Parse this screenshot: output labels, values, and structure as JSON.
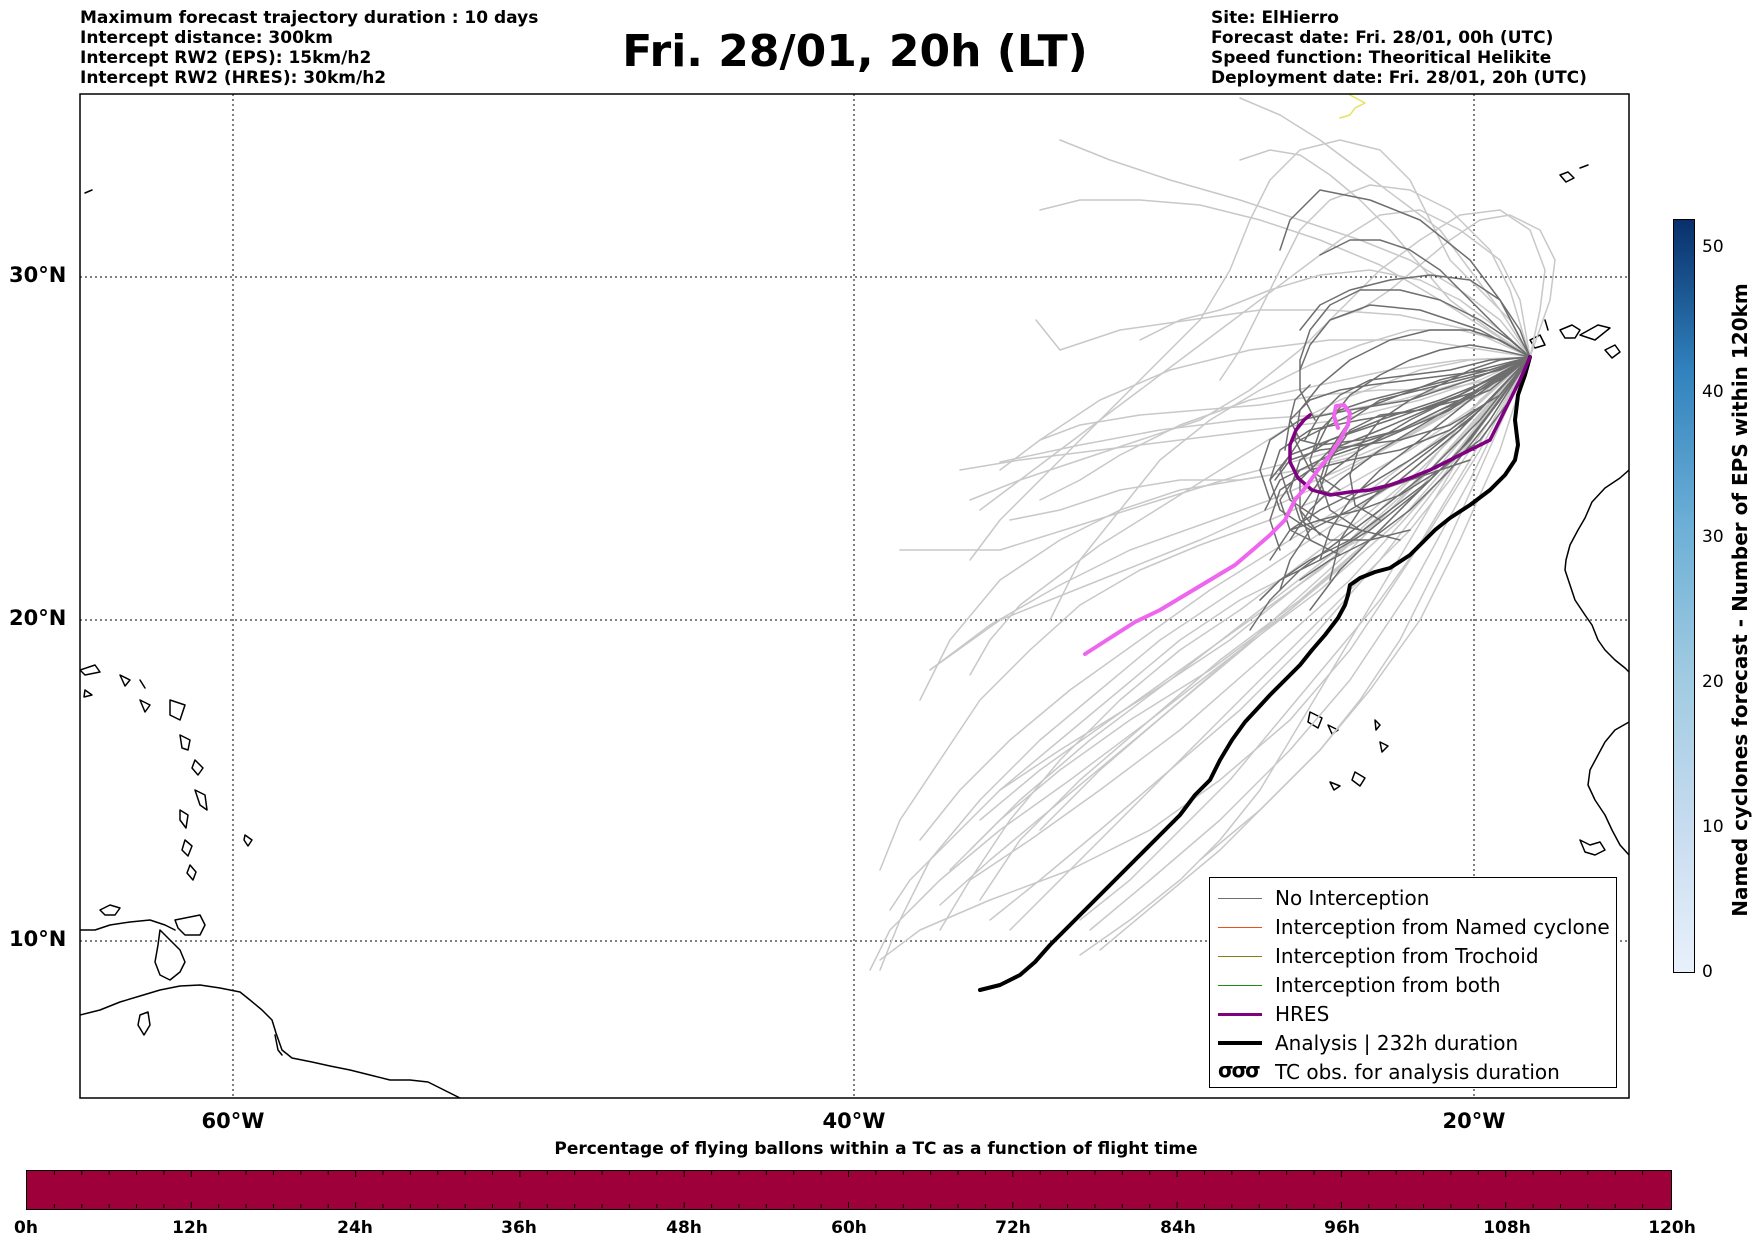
{
  "header": {
    "left": [
      "Maximum forecast trajectory duration : 10 days",
      "Intercept distance: 300km",
      "Intercept RW2 (EPS):  15km/h2",
      "Intercept RW2 (HRES): 30km/h2"
    ],
    "title": "Fri. 28/01, 20h (LT)",
    "right": [
      "Site: ElHierro",
      "Forecast date: Fri. 28/01, 00h (UTC)",
      "Speed function: Theoritical Helikite",
      "Deployment date: Fri. 28/01, 20h (UTC)"
    ]
  },
  "map": {
    "lat_labels": [
      "30°N",
      "20°N",
      "10°N"
    ],
    "lon_labels": [
      "60°W",
      "40°W",
      "20°W"
    ],
    "colors": {
      "no_interception": "#6e6e6e",
      "eps_faded": "#c8c8c8",
      "named_cyclone": "#e8501e",
      "trochoid": "#7f7f1a",
      "both": "#1a8a1a",
      "hres": "#7f0080",
      "analysis": "#000000",
      "hres_intercept": "#ee66ee",
      "coast": "#000000"
    }
  },
  "legend": {
    "items": [
      {
        "label": "No Interception"
      },
      {
        "label": "Interception from Named cyclone"
      },
      {
        "label": "Interception from Trochoid"
      },
      {
        "label": "Interception from both"
      },
      {
        "label": "HRES"
      },
      {
        "label": "Analysis | 232h duration"
      },
      {
        "label": "TC obs. for analysis duration",
        "symbol": "σσσ"
      }
    ]
  },
  "colorbar": {
    "label": "Named cyclones forecast - Number of EPS within 120km",
    "ticks": [
      "50",
      "40",
      "30",
      "20",
      "10",
      "0"
    ],
    "range": [
      0,
      52
    ]
  },
  "percentage_bar": {
    "title": "Percentage of flying ballons within a TC as a function of flight time",
    "color": "#9e003a",
    "ticks": [
      "0h",
      "12h",
      "24h",
      "36h",
      "48h",
      "60h",
      "72h",
      "84h",
      "96h",
      "108h",
      "120h"
    ]
  }
}
